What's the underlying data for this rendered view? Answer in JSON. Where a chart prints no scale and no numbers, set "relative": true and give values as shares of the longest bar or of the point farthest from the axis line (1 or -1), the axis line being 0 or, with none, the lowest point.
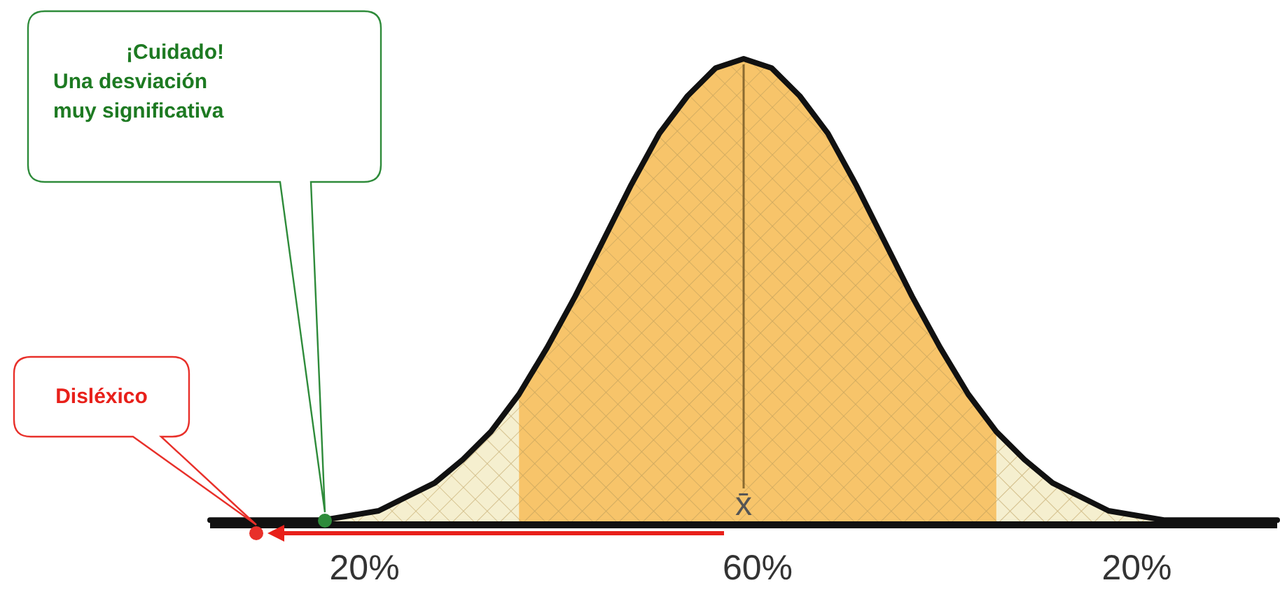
{
  "chart_data": {
    "type": "area",
    "relative": true,
    "categories": [
      null,
      null,
      null,
      null,
      null,
      null,
      null,
      null,
      null,
      null,
      null,
      null,
      null,
      null,
      null,
      null,
      null,
      null,
      null,
      null,
      null,
      null,
      null,
      null,
      null,
      null,
      null,
      null,
      null,
      null,
      null,
      null,
      null,
      null,
      null,
      null,
      null,
      null,
      null
    ],
    "series": [
      {
        "color": "#f5efcf",
        "values": [
          0.01,
          0.01,
          0.01,
          0.01,
          0.01,
          0.02,
          0.03,
          0.06,
          0.09,
          0.14,
          0.2,
          0.28,
          null,
          null,
          null,
          null,
          null,
          null,
          null,
          null,
          null,
          null,
          null,
          null,
          null,
          null,
          null,
          null,
          null,
          null,
          null,
          null,
          null,
          null,
          null,
          null,
          null,
          null,
          null
        ]
      },
      {
        "color": "#f7c46a",
        "values": [
          null,
          null,
          null,
          null,
          null,
          null,
          null,
          null,
          null,
          null,
          null,
          0.28,
          0.38,
          0.49,
          0.61,
          0.73,
          0.84,
          0.92,
          0.98,
          1,
          0.98,
          0.92,
          0.84,
          0.73,
          0.61,
          0.49,
          0.38,
          0.28,
          0.2,
          null,
          null,
          null,
          null,
          null,
          null,
          null,
          null,
          null,
          null
        ]
      },
      {
        "color": "#f5efcf",
        "values": [
          null,
          null,
          null,
          null,
          null,
          null,
          null,
          null,
          null,
          null,
          null,
          null,
          null,
          null,
          null,
          null,
          null,
          null,
          null,
          null,
          null,
          null,
          null,
          null,
          null,
          null,
          null,
          null,
          0.2,
          0.14,
          0.09,
          0.06,
          0.03,
          0.02,
          0.01,
          0.01,
          0.01,
          0.01,
          0.01
        ]
      },
      {
        "type": "line",
        "color": "#111111",
        "values": [
          0.01,
          0.01,
          0.01,
          0.01,
          0.01,
          0.02,
          0.03,
          0.06,
          0.09,
          0.14,
          0.2,
          0.28,
          0.38,
          0.49,
          0.61,
          0.73,
          0.84,
          0.92,
          0.98,
          1,
          0.98,
          0.92,
          0.84,
          0.73,
          0.61,
          0.49,
          0.38,
          0.28,
          0.2,
          0.14,
          0.09,
          0.06,
          0.03,
          0.02,
          0.01,
          0.01,
          0.01,
          0.01,
          0.01
        ]
      }
    ],
    "annotations": [
      "20%",
      "60%",
      "20%",
      "x̄",
      "Disléxico",
      "¡Cuidado!\nUna desviación\nmuy significativa"
    ]
  }
}
